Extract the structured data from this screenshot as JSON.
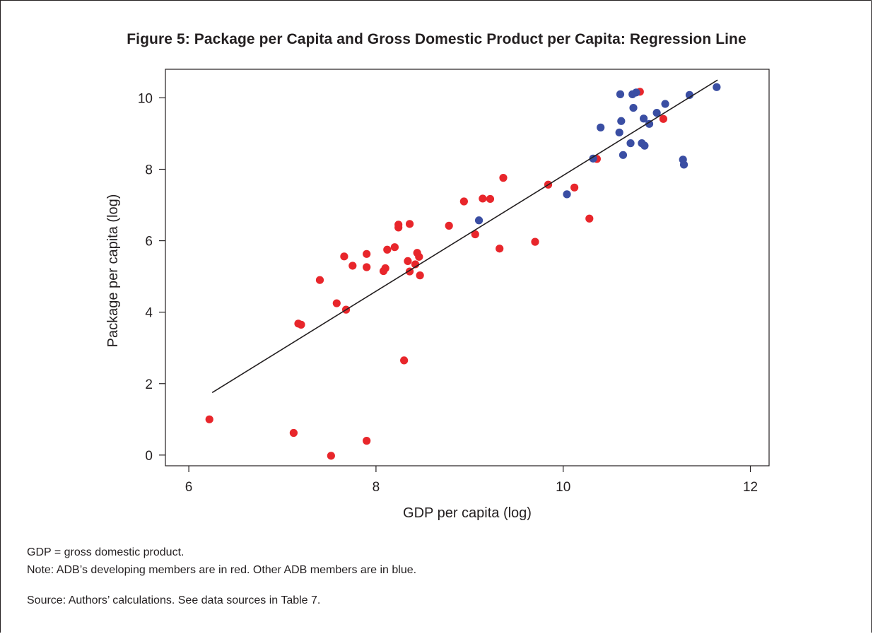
{
  "title": "Figure 5: Package per Capita and Gross Domestic Product per Capita: Regression Line",
  "notes": {
    "abbrev": "GDP = gross domestic product.",
    "note": "Note: ADB’s developing members are in red. Other ADB members are in blue.",
    "source": "Source: Authors’ calculations. See data sources in Table 7."
  },
  "chart_data": {
    "type": "scatter",
    "xlabel": "GDP per capita (log)",
    "ylabel": "Package per capita (log)",
    "xlim": [
      5.75,
      12.2
    ],
    "ylim": [
      -0.3,
      10.8
    ],
    "xticks": [
      6,
      8,
      10,
      12
    ],
    "yticks": [
      0,
      2,
      4,
      6,
      8,
      10
    ],
    "grid": false,
    "colors": {
      "red": "#e8262b",
      "blue": "#3a4ea3",
      "line": "#231f20"
    },
    "regression_line": {
      "x": [
        6.25,
        11.65
      ],
      "y": [
        1.75,
        10.5
      ]
    },
    "series": [
      {
        "color": "red",
        "points": [
          [
            6.22,
            1.0
          ],
          [
            7.12,
            0.62
          ],
          [
            7.52,
            -0.02
          ],
          [
            7.9,
            0.4
          ],
          [
            7.17,
            3.68
          ],
          [
            7.2,
            3.65
          ],
          [
            7.4,
            4.9
          ],
          [
            7.58,
            4.25
          ],
          [
            7.68,
            4.07
          ],
          [
            7.66,
            5.56
          ],
          [
            7.75,
            5.3
          ],
          [
            7.9,
            5.63
          ],
          [
            7.9,
            5.26
          ],
          [
            8.08,
            5.15
          ],
          [
            8.1,
            5.23
          ],
          [
            8.12,
            5.75
          ],
          [
            8.2,
            5.82
          ],
          [
            8.24,
            6.45
          ],
          [
            8.24,
            6.37
          ],
          [
            8.3,
            2.65
          ],
          [
            8.34,
            5.43
          ],
          [
            8.36,
            6.47
          ],
          [
            8.36,
            5.14
          ],
          [
            8.42,
            5.34
          ],
          [
            8.44,
            5.66
          ],
          [
            8.46,
            5.55
          ],
          [
            8.47,
            5.03
          ],
          [
            8.78,
            6.42
          ],
          [
            8.94,
            7.1
          ],
          [
            9.06,
            6.18
          ],
          [
            9.14,
            7.18
          ],
          [
            9.22,
            7.17
          ],
          [
            9.32,
            5.78
          ],
          [
            9.36,
            7.76
          ],
          [
            9.7,
            5.97
          ],
          [
            9.84,
            7.57
          ],
          [
            10.12,
            7.49
          ],
          [
            10.28,
            6.62
          ],
          [
            10.36,
            8.29
          ],
          [
            10.82,
            10.17
          ],
          [
            11.07,
            9.41
          ]
        ]
      },
      {
        "color": "blue",
        "points": [
          [
            9.1,
            6.57
          ],
          [
            10.04,
            7.3
          ],
          [
            10.32,
            8.3
          ],
          [
            10.4,
            9.17
          ],
          [
            10.6,
            9.03
          ],
          [
            10.61,
            10.1
          ],
          [
            10.62,
            9.35
          ],
          [
            10.64,
            8.4
          ],
          [
            10.72,
            8.73
          ],
          [
            10.74,
            10.1
          ],
          [
            10.75,
            9.72
          ],
          [
            10.78,
            10.15
          ],
          [
            10.84,
            8.73
          ],
          [
            10.86,
            9.42
          ],
          [
            10.87,
            8.66
          ],
          [
            10.92,
            9.27
          ],
          [
            11.0,
            9.58
          ],
          [
            11.09,
            9.83
          ],
          [
            11.28,
            8.27
          ],
          [
            11.29,
            8.13
          ],
          [
            11.35,
            10.08
          ],
          [
            11.64,
            10.3
          ]
        ]
      }
    ]
  }
}
